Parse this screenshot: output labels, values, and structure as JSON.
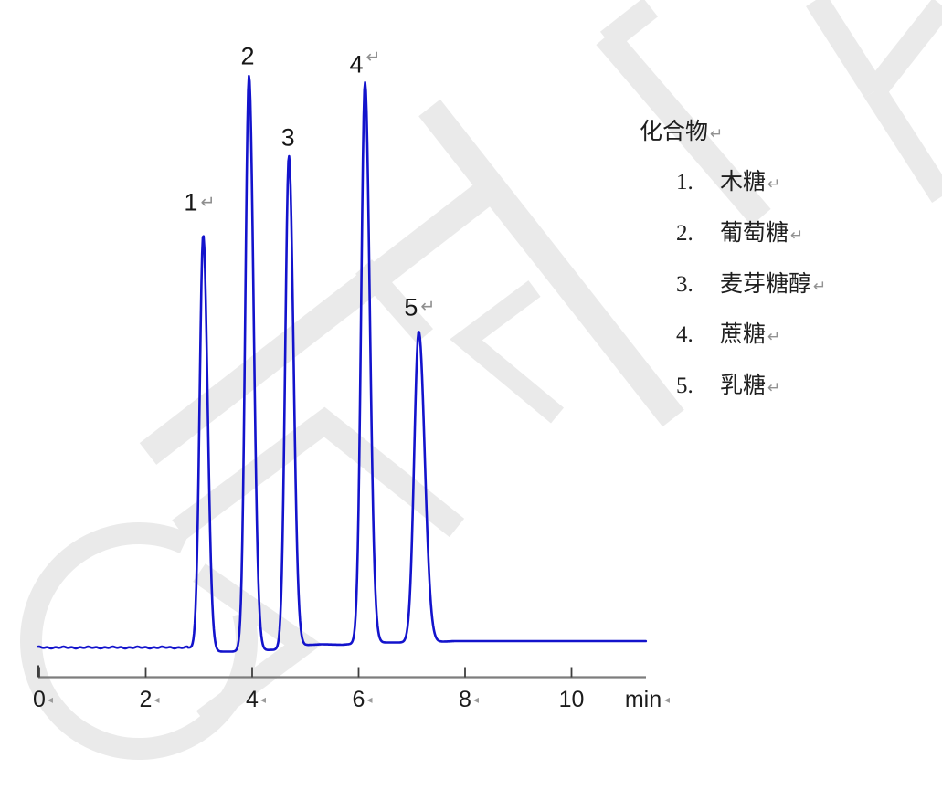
{
  "document": {
    "kind": "word-document chromatogram figure",
    "background_color": "#ffffff",
    "watermark_color": "#eaeaea",
    "formatting_return_mark": "↵",
    "formatting_tick_mark": "◂"
  },
  "axis": {
    "unit_label": "min",
    "ticks": [
      "0",
      "2",
      "4",
      "6",
      "8",
      "10"
    ],
    "line_color": "#7d7d7d",
    "tick_color": "#3f3f3f",
    "label_color": "#1c1c1c",
    "mark_color": "#9c9c9c",
    "ticks_with_mark": [
      "0",
      "2",
      "4",
      "6",
      "8"
    ],
    "unit_has_mark": true
  },
  "legend": {
    "title": "化合物",
    "items": [
      {
        "num": "1.",
        "name": "木糖"
      },
      {
        "num": "2.",
        "name": "葡萄糖"
      },
      {
        "num": "3.",
        "name": "麦芽糖醇"
      },
      {
        "num": "4.",
        "name": "蔗糖"
      },
      {
        "num": "5.",
        "name": "乳糖"
      }
    ]
  },
  "chart_data": {
    "type": "line",
    "title": "",
    "xlabel": "min",
    "ylabel": "",
    "x_range": [
      0,
      11.4
    ],
    "x_ticks": [
      0,
      2,
      4,
      6,
      8,
      10
    ],
    "grid": false,
    "trace_color": "#1313cc",
    "baseline_note": "flat baseline with slight dips between peaks",
    "peaks": [
      {
        "label": "1",
        "compound": "木糖",
        "retention_min": 3.08,
        "rel_height": 0.722,
        "has_return_mark": true
      },
      {
        "label": "2",
        "compound": "葡萄糖",
        "retention_min": 3.94,
        "rel_height": 1.0,
        "has_return_mark": false
      },
      {
        "label": "3",
        "compound": "麦芽糖醇",
        "retention_min": 4.69,
        "rel_height": 0.856,
        "has_return_mark": false
      },
      {
        "label": "4",
        "compound": "蔗糖",
        "retention_min": 6.12,
        "rel_height": 0.976,
        "has_return_mark": true
      },
      {
        "label": "5",
        "compound": "乳糖",
        "retention_min": 7.13,
        "rel_height": 0.541,
        "has_return_mark": true
      }
    ]
  }
}
